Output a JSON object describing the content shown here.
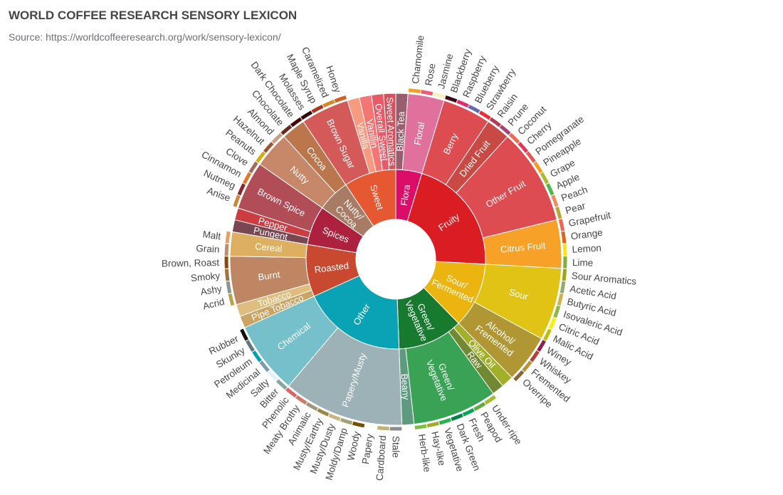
{
  "chart_data": {
    "type": "sunburst",
    "title": "WORLD COFFEE RESEARCH SENSORY LEXICON",
    "subtitle": "Source: https://worldcoffeeresearch.org/work/sensory-lexicon/",
    "children": [
      {
        "name": "Flora",
        "color": "#da0d68",
        "children": [
          {
            "name": "Black Tea",
            "color": "#975e6d",
            "value": 1
          },
          {
            "name": "Floral",
            "color": "#e0719c",
            "children": [
              {
                "name": "Chamomile",
                "color": "#f99e1c",
                "value": 1
              },
              {
                "name": "Rose",
                "color": "#ef5a78",
                "value": 1
              },
              {
                "name": "Jasmine",
                "color": "#f7f1bd",
                "value": 1
              }
            ]
          }
        ]
      },
      {
        "name": "Fruity",
        "color": "#da1d23",
        "children": [
          {
            "name": "Berry",
            "color": "#dd4c51",
            "children": [
              {
                "name": "Blackberry",
                "color": "#3e0317",
                "value": 1
              },
              {
                "name": "Raspberry",
                "color": "#e62969",
                "value": 1
              },
              {
                "name": "Blueberry",
                "color": "#6569b0",
                "value": 1
              },
              {
                "name": "Strawberry",
                "color": "#ef2d36",
                "value": 1
              }
            ]
          },
          {
            "name": "Dried Fruit",
            "color": "#c94a44",
            "children": [
              {
                "name": "Raisin",
                "color": "#b53b54",
                "value": 1
              },
              {
                "name": "Prune",
                "color": "#a5446f",
                "value": 1
              }
            ]
          },
          {
            "name": "Other Fruit",
            "color": "#dd4c51",
            "children": [
              {
                "name": "Coconut",
                "color": "#f2684b",
                "value": 1
              },
              {
                "name": "Cherry",
                "color": "#e73451",
                "value": 1
              },
              {
                "name": "Pomegranate",
                "color": "#e65656",
                "value": 1
              },
              {
                "name": "Pineapple",
                "color": "#f89a1c",
                "value": 1
              },
              {
                "name": "Grape",
                "color": "#aeb92c",
                "value": 1
              },
              {
                "name": "Apple",
                "color": "#4eb849",
                "value": 1
              },
              {
                "name": "Peach",
                "color": "#f68a5c",
                "value": 1
              },
              {
                "name": "Pear",
                "color": "#baa635",
                "value": 1
              }
            ]
          },
          {
            "name": "Citrus Fruit",
            "color": "#f7a128",
            "children": [
              {
                "name": "Grapefruit",
                "color": "#f26355",
                "value": 1
              },
              {
                "name": "Orange",
                "color": "#e2631e",
                "value": 1
              },
              {
                "name": "Lemon",
                "color": "#fde404",
                "value": 1
              },
              {
                "name": "Lime",
                "color": "#7eb138",
                "value": 1
              }
            ]
          }
        ]
      },
      {
        "name": "Sour/ Fermented",
        "color": "#ebb40f",
        "children": [
          {
            "name": "Sour",
            "color": "#e1c315",
            "children": [
              {
                "name": "Sour Aromatics",
                "color": "#9ea718",
                "value": 1
              },
              {
                "name": "Acetic Acid",
                "color": "#94a76f",
                "value": 1
              },
              {
                "name": "Butyric Acid",
                "color": "#d0b24f",
                "value": 1
              },
              {
                "name": "Isovaleric Acid",
                "color": "#8eb646",
                "value": 1
              },
              {
                "name": "Citric Acid",
                "color": "#faef07",
                "value": 1
              },
              {
                "name": "Malic Acid",
                "color": "#c1ba07",
                "value": 1
              }
            ]
          },
          {
            "name": "Alcohol/ Fremented",
            "color": "#b09733",
            "children": [
              {
                "name": "Winey",
                "color": "#8f1c53",
                "value": 1
              },
              {
                "name": "Whiskey",
                "color": "#b34039",
                "value": 1
              },
              {
                "name": "Fremented",
                "color": "#ba9232",
                "value": 1
              },
              {
                "name": "Overripe",
                "color": "#8b6439",
                "value": 1
              }
            ]
          }
        ]
      },
      {
        "name": "Green/ Vegetative",
        "color": "#187a2f",
        "children": [
          {
            "name": "Olive Oil",
            "color": "#a2b029",
            "value": 1
          },
          {
            "name": "Raw",
            "color": "#718933",
            "value": 1
          },
          {
            "name": "Green/ Vegetative",
            "color": "#3aa255",
            "children": [
              {
                "name": "Under-ripe",
                "color": "#a2bb2b",
                "value": 1
              },
              {
                "name": "Peapod",
                "color": "#62aa3c",
                "value": 1
              },
              {
                "name": "Fresh",
                "color": "#03a653",
                "value": 1
              },
              {
                "name": "Dark Green",
                "color": "#038549",
                "value": 1
              },
              {
                "name": "Vegetative",
                "color": "#28b44b",
                "value": 1
              },
              {
                "name": "Hay-like",
                "color": "#a3a830",
                "value": 1
              },
              {
                "name": "Herb-like",
                "color": "#7ac141",
                "value": 1
              }
            ]
          },
          {
            "name": "Beany",
            "color": "#5e9a80",
            "value": 1
          }
        ]
      },
      {
        "name": "Other",
        "color": "#0aa3b5",
        "children": [
          {
            "name": "Papery/Musty",
            "color": "#9db2b7",
            "children": [
              {
                "name": "Stale",
                "color": "#8b8c90",
                "value": 1
              },
              {
                "name": "Cardboard",
                "color": "#beb276",
                "value": 1
              },
              {
                "name": "Papery",
                "color": "#fefef4",
                "value": 1
              },
              {
                "name": "Woody",
                "color": "#744e03",
                "value": 1
              },
              {
                "name": "Moldy/Damp",
                "color": "#a3a36f",
                "value": 1
              },
              {
                "name": "Musty/Dusty",
                "color": "#c9b583",
                "value": 1
              },
              {
                "name": "Musty/Earthy",
                "color": "#978847",
                "value": 1
              },
              {
                "name": "Animalic",
                "color": "#9d977f",
                "value": 1
              },
              {
                "name": "Meaty Brothy",
                "color": "#cc7b6a",
                "value": 1
              },
              {
                "name": "Phenolic",
                "color": "#db646a",
                "value": 1
              }
            ]
          },
          {
            "name": "Chemical",
            "color": "#76c0cb",
            "children": [
              {
                "name": "Bitter",
                "color": "#80a89d",
                "value": 1
              },
              {
                "name": "Salty",
                "color": "#def2fd",
                "value": 1
              },
              {
                "name": "Medicinal",
                "color": "#7a9bae",
                "value": 1
              },
              {
                "name": "Petroleum",
                "color": "#039fb8",
                "value": 1
              },
              {
                "name": "Skunky",
                "color": "#5e777b",
                "value": 1
              },
              {
                "name": "Rubber",
                "color": "#120c0c",
                "value": 1
              }
            ]
          }
        ]
      },
      {
        "name": "Roasted",
        "color": "#c94930",
        "children": [
          {
            "name": "Pipe Tobacco",
            "color": "#caa465",
            "value": 1
          },
          {
            "name": "Tobacco",
            "color": "#dfbd7e",
            "value": 1
          },
          {
            "name": "Burnt",
            "color": "#be8663",
            "children": [
              {
                "name": "Acrid",
                "color": "#b9a449",
                "value": 1
              },
              {
                "name": "Ashy",
                "color": "#899893",
                "value": 1
              },
              {
                "name": "Smoky",
                "color": "#a1743b",
                "value": 1
              },
              {
                "name": "Brown, Roast",
                "color": "#894810",
                "value": 1
              }
            ]
          },
          {
            "name": "Cereal",
            "color": "#ddaf61",
            "children": [
              {
                "name": "Grain",
                "color": "#b7906f",
                "value": 1
              },
              {
                "name": "Malt",
                "color": "#eb9d5f",
                "value": 1
              }
            ]
          }
        ]
      },
      {
        "name": "Spices",
        "color": "#ad213e",
        "children": [
          {
            "name": "Pungent",
            "color": "#794752",
            "value": 1
          },
          {
            "name": "Pepper",
            "color": "#cc3d41",
            "value": 1
          },
          {
            "name": "Brown Spice",
            "color": "#b14d57",
            "children": [
              {
                "name": "Anise",
                "color": "#c78936",
                "value": 1
              },
              {
                "name": "Nutmeg",
                "color": "#8c292c",
                "value": 1
              },
              {
                "name": "Cinnamon",
                "color": "#e5762e",
                "value": 1
              },
              {
                "name": "Clove",
                "color": "#a16c5a",
                "value": 1
              }
            ]
          }
        ]
      },
      {
        "name": "Nutty/ Cocoa",
        "color": "#a87b64",
        "children": [
          {
            "name": "Nutty",
            "color": "#c78869",
            "children": [
              {
                "name": "Peanuts",
                "color": "#d4ad12",
                "value": 1
              },
              {
                "name": "Hazelnut",
                "color": "#9d5433",
                "value": 1
              },
              {
                "name": "Almond",
                "color": "#c89f83",
                "value": 1
              }
            ]
          },
          {
            "name": "Cocoa",
            "color": "#bb764c",
            "children": [
              {
                "name": "Chocolate",
                "color": "#692a19",
                "value": 1
              },
              {
                "name": "Dark Chocolate",
                "color": "#470604",
                "value": 1
              }
            ]
          }
        ]
      },
      {
        "name": "Sweet",
        "color": "#e65832",
        "children": [
          {
            "name": "Brown Sugar",
            "color": "#d45a59",
            "children": [
              {
                "name": "Molasses",
                "color": "#310d0f",
                "value": 1
              },
              {
                "name": "Maple Syrup",
                "color": "#ae341f",
                "value": 1
              },
              {
                "name": "Caramelized",
                "color": "#d78823",
                "value": 1
              },
              {
                "name": "Honey",
                "color": "#da5c1f",
                "value": 1
              }
            ]
          },
          {
            "name": "Vanilla",
            "color": "#f89a80",
            "value": 1
          },
          {
            "name": "Vanillin",
            "color": "#f37674",
            "value": 1
          },
          {
            "name": "Overall Sweet",
            "color": "#e75b68",
            "value": 1
          },
          {
            "name": "Sweet Aromatics",
            "color": "#d0545f",
            "value": 1
          }
        ]
      }
    ]
  }
}
